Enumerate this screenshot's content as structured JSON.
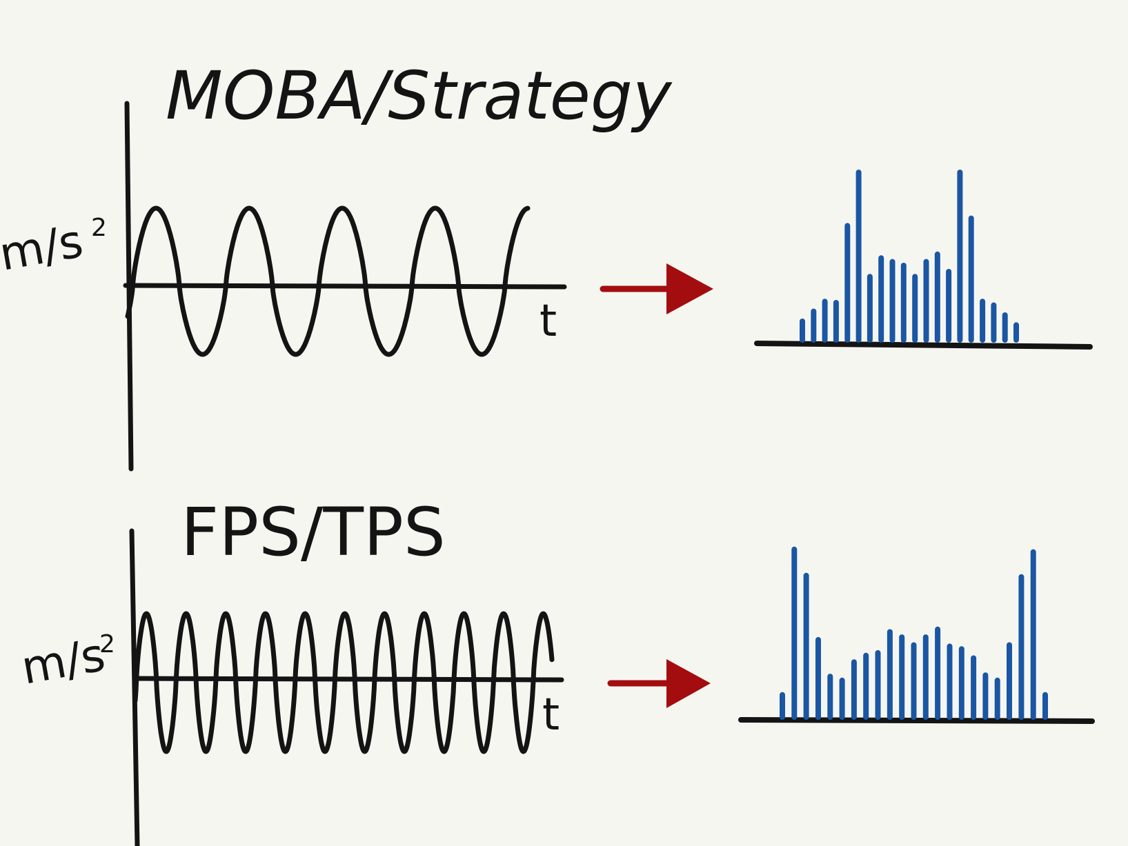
{
  "colors": {
    "background": "#f6f6f1",
    "ink": "#141414",
    "arrow": "#a30d10",
    "bars": "#1a56a3"
  },
  "panels": [
    {
      "title": "MOBA/Strategy",
      "y_axis_label": "m/s",
      "y_axis_exponent": "2",
      "x_axis_label": "t",
      "signal": {
        "cycles": 4.3,
        "description_shape": "low-frequency oscillation"
      },
      "spectrum_bars": [
        0.15,
        0.23,
        0.31,
        0.3,
        0.92,
        1.35,
        0.51,
        0.66,
        0.63,
        0.6,
        0.51,
        0.63,
        0.69,
        0.55,
        1.35,
        0.98,
        0.31,
        0.28,
        0.2,
        0.12
      ]
    },
    {
      "title": "FPS/TPS",
      "y_axis_label": "m/s",
      "y_axis_exponent": "2",
      "x_axis_label": "t",
      "signal": {
        "cycles": 10.5,
        "description_shape": "high-frequency oscillation"
      },
      "spectrum_bars": [
        0.17,
        1.28,
        1.08,
        0.59,
        0.31,
        0.28,
        0.42,
        0.47,
        0.49,
        0.65,
        0.61,
        0.55,
        0.61,
        0.67,
        0.54,
        0.52,
        0.45,
        0.32,
        0.28,
        0.55,
        1.07,
        1.26,
        0.17
      ]
    }
  ]
}
